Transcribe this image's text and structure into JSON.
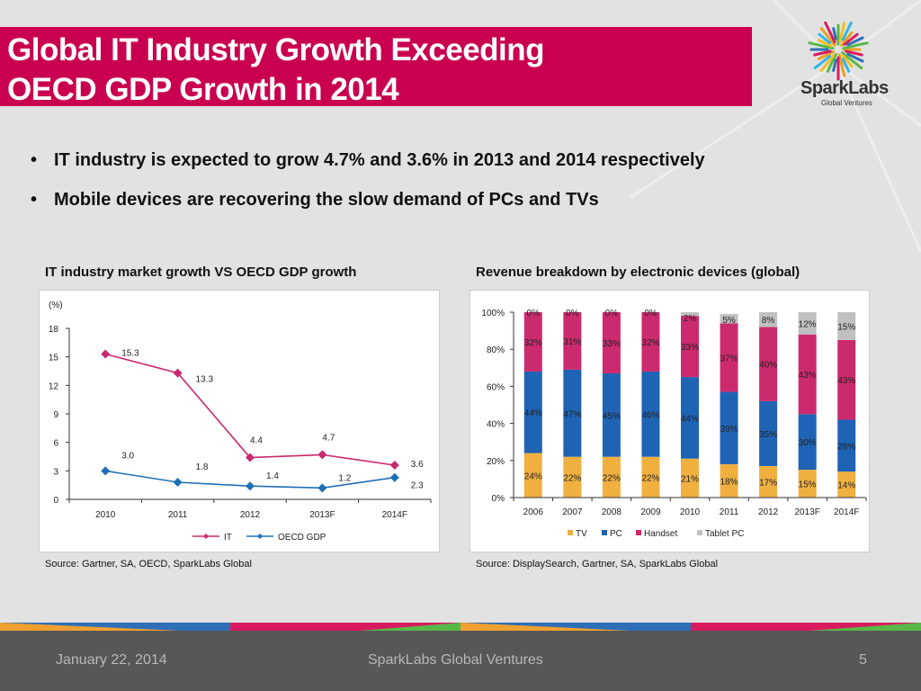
{
  "slide": {
    "title_line1": "Global IT Industry Growth Exceeding",
    "title_line2": "OECD GDP Growth in 2014",
    "logo": {
      "name": "SparkLabs",
      "sub": "Global Ventures"
    },
    "bullets": [
      "IT industry is expected to grow 4.7% and 3.6% in 2013 and 2014 respectively",
      "Mobile devices are recovering the slow demand of PCs and TVs"
    ],
    "bullet_char": "•",
    "colors": {
      "title_bar": "#c9004f",
      "footer": "#575757",
      "it": "#c9286e",
      "oecd": "#1f6fb5",
      "tv": "#f0b040",
      "pc": "#1f63b5",
      "handset": "#cc2a6e",
      "tablet": "#c0c0c0"
    },
    "footer": {
      "date": "January 22, 2014",
      "org": "SparkLabs Global Ventures",
      "page": "5"
    }
  },
  "chart_data": [
    {
      "type": "line",
      "title": "IT industry market growth VS OECD GDP growth",
      "ylabel": "(%)",
      "categories": [
        "2010",
        "2011",
        "2012",
        "2013F",
        "2014F"
      ],
      "ylim": [
        0,
        18
      ],
      "yticks": [
        0,
        3,
        6,
        9,
        12,
        15,
        18
      ],
      "series": [
        {
          "name": "IT",
          "values": [
            15.3,
            13.3,
            4.4,
            4.7,
            3.6
          ],
          "labels": [
            "15.3",
            "13.3",
            "4.4",
            "4.7",
            "3.6"
          ]
        },
        {
          "name": "OECD GDP",
          "values": [
            3.0,
            1.8,
            1.4,
            1.2,
            2.3
          ],
          "labels": [
            "3.0",
            "1.8",
            "1.4",
            "1.2",
            "2.3"
          ]
        }
      ],
      "legend": "bottom",
      "grid": false,
      "source": "Source: Gartner, SA, OECD, SparkLabs Global"
    },
    {
      "type": "bar",
      "stacked": true,
      "title": "Revenue breakdown by electronic devices (global)",
      "categories": [
        "2006",
        "2007",
        "2008",
        "2009",
        "2010",
        "2011",
        "2012",
        "2013F",
        "2014F"
      ],
      "ylim": [
        0,
        100
      ],
      "yticks": [
        "0%",
        "20%",
        "40%",
        "60%",
        "80%",
        "100%"
      ],
      "series": [
        {
          "name": "TV",
          "values": [
            24,
            22,
            22,
            22,
            21,
            18,
            17,
            15,
            14
          ]
        },
        {
          "name": "PC",
          "values": [
            44,
            47,
            45,
            46,
            44,
            39,
            35,
            30,
            28
          ]
        },
        {
          "name": "Handset",
          "values": [
            32,
            31,
            33,
            32,
            33,
            37,
            40,
            43,
            43
          ]
        },
        {
          "name": "Tablet PC",
          "values": [
            0,
            0,
            0,
            0,
            2,
            5,
            8,
            12,
            15
          ]
        }
      ],
      "legend": "bottom",
      "grid": false,
      "source": "Source: DisplaySearch, Gartner, SA, SparkLabs Global"
    }
  ]
}
